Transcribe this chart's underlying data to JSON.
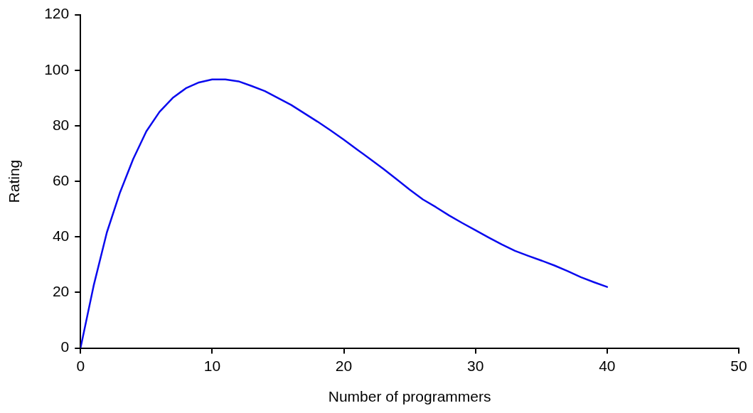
{
  "chart_data": {
    "type": "line",
    "xlabel": "Number of programmers",
    "ylabel": "Rating",
    "x": [
      0,
      1,
      2,
      3,
      4,
      5,
      6,
      7,
      8,
      9,
      10,
      11,
      12,
      13,
      14,
      15,
      16,
      17,
      18,
      19,
      20,
      21,
      22,
      23,
      24,
      25,
      26,
      27,
      28,
      29,
      30,
      31,
      32,
      33,
      34,
      35,
      36,
      37,
      38,
      39,
      40
    ],
    "series": [
      {
        "color": "#0a0aee",
        "values": [
          0,
          22.5,
          41.6,
          56,
          68,
          78,
          85,
          90,
          93.5,
          95.6,
          96.7,
          96.7,
          96,
          94.3,
          92.5,
          90,
          87.5,
          84.5,
          81.5,
          78.3,
          75,
          71.5,
          68,
          64.5,
          60.8,
          57,
          53.5,
          50.7,
          47.7,
          45,
          42.4,
          39.8,
          37.3,
          35,
          33.2,
          31.5,
          29.7,
          27.7,
          25.5,
          23.7,
          22
        ]
      }
    ],
    "xlim": [
      0,
      50
    ],
    "xticks": [
      0,
      10,
      20,
      30,
      40,
      50
    ],
    "ylim": [
      0,
      120
    ],
    "yticks": [
      0,
      20,
      40,
      60,
      80,
      100,
      120
    ],
    "grid": false,
    "legend": false,
    "marker": "none",
    "line_style": "solid"
  }
}
